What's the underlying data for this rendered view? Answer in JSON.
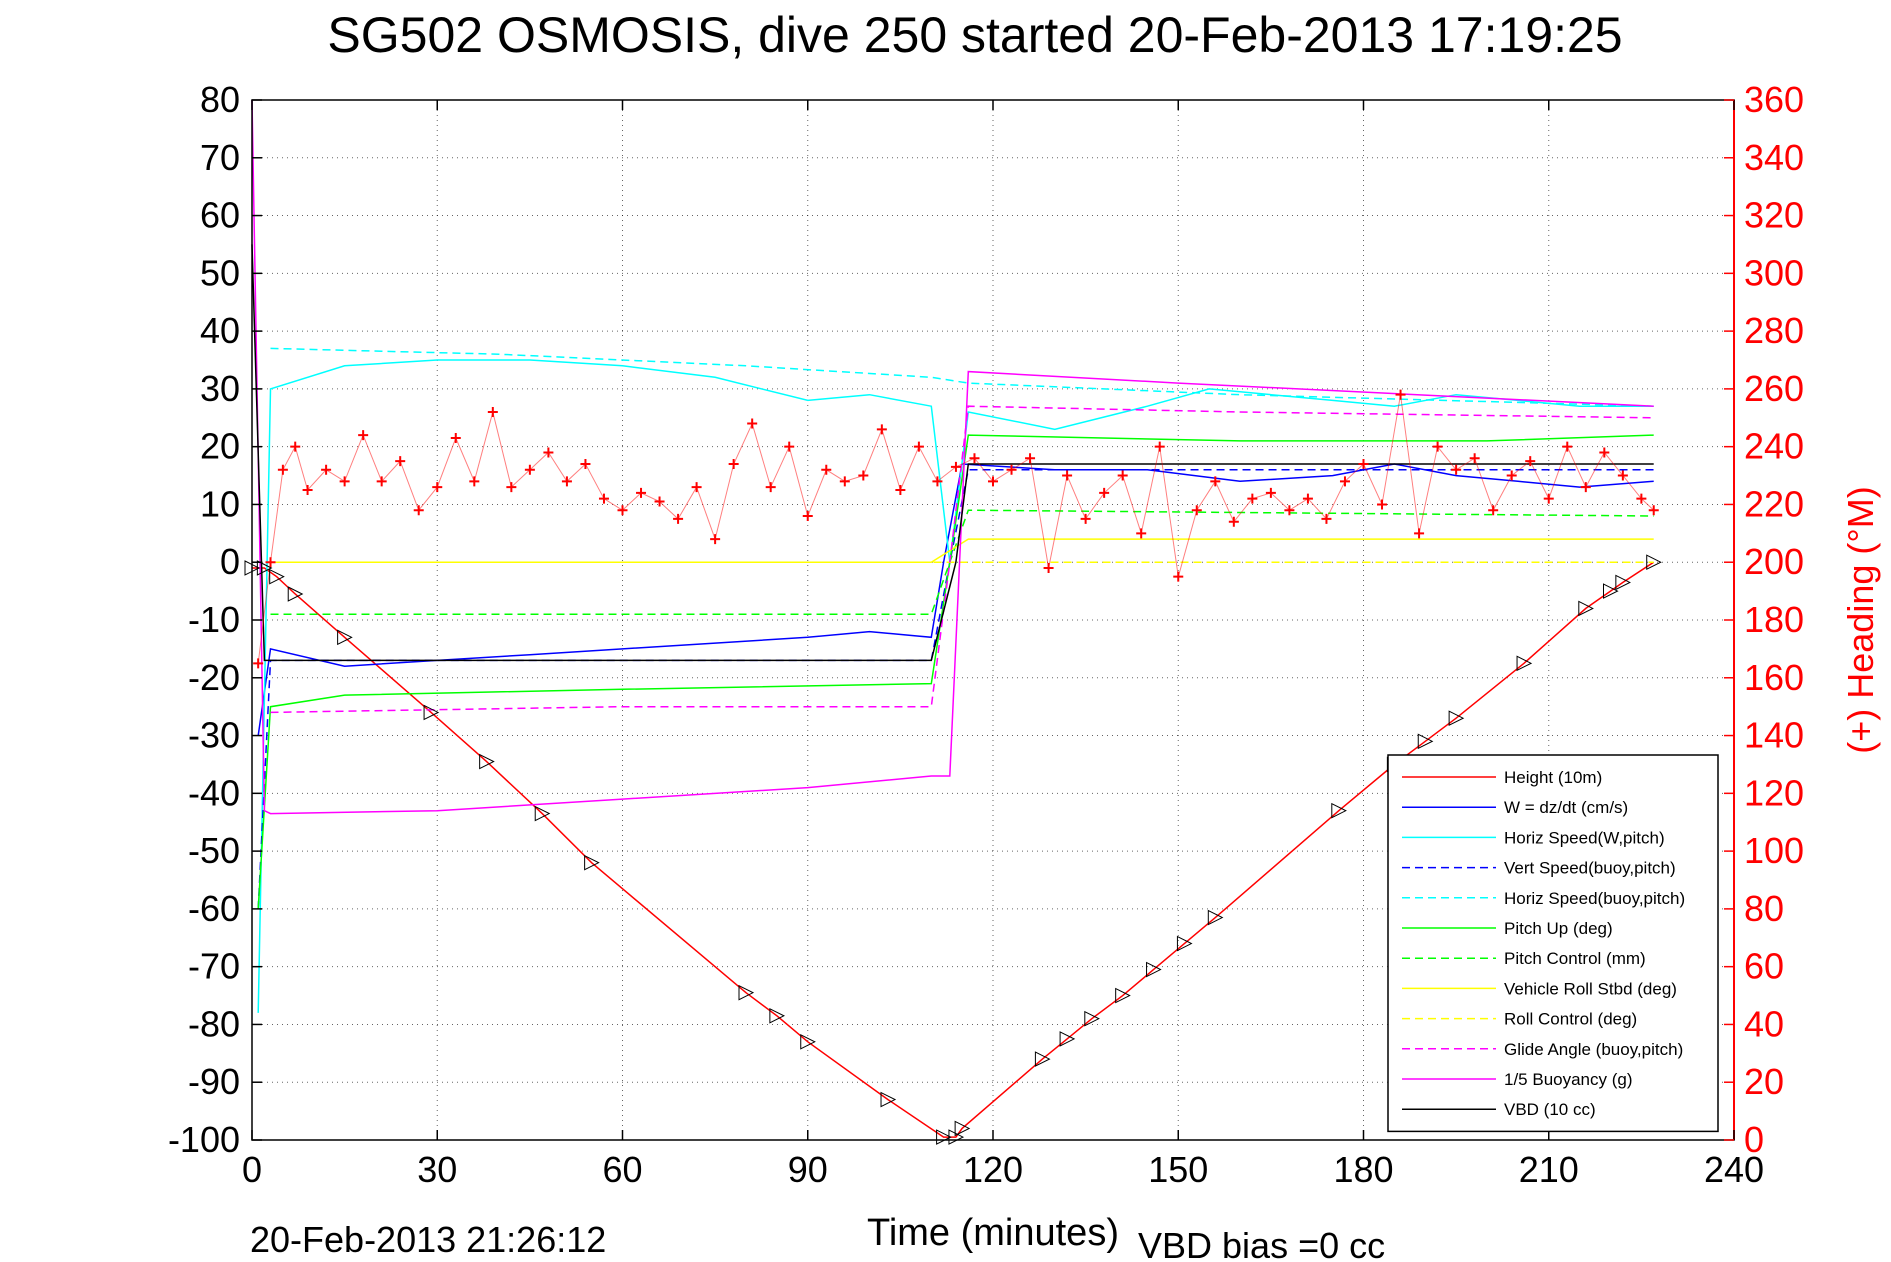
{
  "chart_data": {
    "type": "line",
    "title": "SG502 OSMOSIS, dive 250 started 20-Feb-2013 17:19:25",
    "xlabel": "Time (minutes)",
    "ylabel_right": "(+) Heading (°M)",
    "footer_left": "20-Feb-2013 21:26:12",
    "footer_right": "VBD bias =0 cc",
    "xlim": [
      0,
      240
    ],
    "ylim": [
      -100,
      80
    ],
    "ylim_right": [
      0,
      360
    ],
    "xticks": [
      0,
      30,
      60,
      90,
      120,
      150,
      180,
      210,
      240
    ],
    "yticks": [
      -100,
      -90,
      -80,
      -70,
      -60,
      -50,
      -40,
      -30,
      -20,
      -10,
      0,
      10,
      20,
      30,
      40,
      50,
      60,
      70,
      80
    ],
    "yticks_right": [
      0,
      20,
      40,
      60,
      80,
      100,
      120,
      140,
      160,
      180,
      200,
      220,
      240,
      260,
      280,
      300,
      320,
      340,
      360
    ],
    "grid": true,
    "legend_position": "bottom-right",
    "colors": {
      "height": "#ff0000",
      "w": "#0000ff",
      "horiz_speed": "#00ffff",
      "pitch": "#00ff00",
      "roll": "#ffff00",
      "glide": "#ff00ff",
      "buoyancy": "#ff00ff",
      "vbd": "#000000",
      "heading": "#ff0000",
      "right_axis": "#ff0000"
    },
    "series": [
      {
        "name": "Height (10m)",
        "color": "#ff0000",
        "style": "solid",
        "x": [
          0,
          2,
          4,
          7,
          15,
          29,
          38,
          47,
          55,
          80,
          85,
          90,
          103,
          112,
          114,
          115,
          128,
          132,
          136,
          141,
          146,
          151,
          156,
          176,
          185,
          190,
          195,
          206,
          216,
          220,
          222,
          227
        ],
        "y": [
          -1,
          -1,
          -2.5,
          -5.5,
          -13,
          -26,
          -34.5,
          -43.5,
          -52,
          -74.5,
          -78.5,
          -83,
          -93,
          -99.5,
          -99.5,
          -98,
          -86,
          -82.5,
          -79,
          -75,
          -70.5,
          -66,
          -61.5,
          -43,
          -35,
          -31,
          -27,
          -17.5,
          -8,
          -5,
          -3.5,
          0
        ]
      },
      {
        "name": "W = dz/dt (cm/s)",
        "color": "#0000ff",
        "style": "solid",
        "x": [
          1,
          3,
          15,
          30,
          45,
          60,
          75,
          90,
          100,
          110,
          112,
          115,
          130,
          145,
          160,
          175,
          185,
          195,
          205,
          215,
          227
        ],
        "y": [
          -30,
          -15,
          -18,
          -17,
          -16,
          -15,
          -14,
          -13,
          -12,
          -13,
          0,
          17,
          16,
          16,
          14,
          15,
          17,
          15,
          14,
          13,
          14
        ]
      },
      {
        "name": "Horiz Speed(W,pitch)",
        "color": "#00ffff",
        "style": "solid",
        "x": [
          1,
          3,
          15,
          30,
          45,
          60,
          75,
          90,
          100,
          110,
          113,
          116,
          130,
          145,
          155,
          175,
          185,
          195,
          205,
          215,
          227
        ],
        "y": [
          -78,
          30,
          34,
          35,
          35,
          34,
          32,
          28,
          29,
          27,
          0,
          26,
          23,
          27,
          30,
          28,
          27,
          29,
          28,
          27,
          27
        ]
      },
      {
        "name": "Vert Speed(buoy,pitch)",
        "color": "#0000ff",
        "style": "dashed",
        "x": [
          1,
          3,
          110,
          113,
          116,
          227
        ],
        "y": [
          -60,
          -17,
          -17,
          0,
          16,
          16
        ]
      },
      {
        "name": "Horiz Speed(buoy,pitch)",
        "color": "#00ffff",
        "style": "dashed",
        "x": [
          3,
          40,
          80,
          110,
          116,
          160,
          227
        ],
        "y": [
          37,
          36,
          34,
          32,
          31,
          29,
          27
        ]
      },
      {
        "name": "Pitch Up (deg)",
        "color": "#00ff00",
        "style": "solid",
        "x": [
          1,
          3,
          15,
          60,
          110,
          113,
          116,
          160,
          200,
          227
        ],
        "y": [
          -60,
          -25,
          -23,
          -22,
          -21,
          0,
          22,
          21,
          21,
          22
        ]
      },
      {
        "name": "Pitch Control (mm)",
        "color": "#00ff00",
        "style": "dashed",
        "x": [
          3,
          110,
          113,
          116,
          227
        ],
        "y": [
          -9,
          -9,
          0,
          9,
          8
        ]
      },
      {
        "name": "Vehicle Roll Stbd (deg)",
        "color": "#ffff00",
        "style": "solid",
        "x": [
          3,
          8,
          60,
          110,
          116,
          160,
          227
        ],
        "y": [
          0,
          0,
          0,
          0,
          4,
          4,
          4
        ]
      },
      {
        "name": "Roll Control (deg)",
        "color": "#ffff00",
        "style": "dashed",
        "x": [
          3,
          110,
          116,
          227
        ],
        "y": [
          0,
          0,
          0,
          0
        ]
      },
      {
        "name": "Glide Angle (buoy,pitch)",
        "color": "#ff00ff",
        "style": "dashed",
        "x": [
          3,
          60,
          110,
          113,
          116,
          160,
          227
        ],
        "y": [
          -26,
          -25,
          -25,
          0,
          27,
          26,
          25
        ]
      },
      {
        "name": "1/5 Buoyancy (g)",
        "color": "#ff00ff",
        "style": "solid",
        "x": [
          0,
          2,
          3,
          30,
          60,
          90,
          110,
          113,
          116,
          150,
          227
        ],
        "y": [
          80,
          -43,
          -43.5,
          -43,
          -41,
          -39,
          -37,
          -37,
          33,
          31,
          27
        ]
      },
      {
        "name": "VBD (10 cc)",
        "color": "#000000",
        "style": "solid",
        "x": [
          0,
          2,
          110,
          114,
          116,
          227
        ],
        "y": [
          55,
          -17,
          -17,
          0,
          17,
          17
        ]
      },
      {
        "name": "(+) Heading",
        "color": "#ff0000",
        "style": "markers",
        "axis": "right",
        "x": [
          1,
          3,
          5,
          7,
          9,
          12,
          15,
          18,
          21,
          24,
          27,
          30,
          33,
          36,
          39,
          42,
          45,
          48,
          51,
          54,
          57,
          60,
          63,
          66,
          69,
          72,
          75,
          78,
          81,
          84,
          87,
          90,
          93,
          96,
          99,
          102,
          105,
          108,
          111,
          114,
          117,
          120,
          123,
          126,
          129,
          132,
          135,
          138,
          141,
          144,
          147,
          150,
          153,
          156,
          159,
          162,
          165,
          168,
          171,
          174,
          177,
          180,
          183,
          186,
          189,
          192,
          195,
          198,
          201,
          204,
          207,
          210,
          213,
          216,
          219,
          222,
          225,
          227
        ],
        "y": [
          165,
          200,
          232,
          240,
          225,
          232,
          228,
          244,
          228,
          235,
          218,
          226,
          243,
          228,
          252,
          226,
          232,
          238,
          228,
          234,
          222,
          218,
          224,
          221,
          215,
          226,
          208,
          234,
          248,
          226,
          240,
          216,
          232,
          228,
          230,
          246,
          225,
          240,
          228,
          233,
          236,
          228,
          232,
          236,
          198,
          230,
          215,
          224,
          230,
          210,
          240,
          195,
          218,
          228,
          214,
          222,
          224,
          218,
          222,
          215,
          228,
          234,
          220,
          258,
          210,
          240,
          232,
          236,
          218,
          230,
          235,
          222,
          240,
          226,
          238,
          230,
          222,
          218
        ]
      }
    ]
  }
}
